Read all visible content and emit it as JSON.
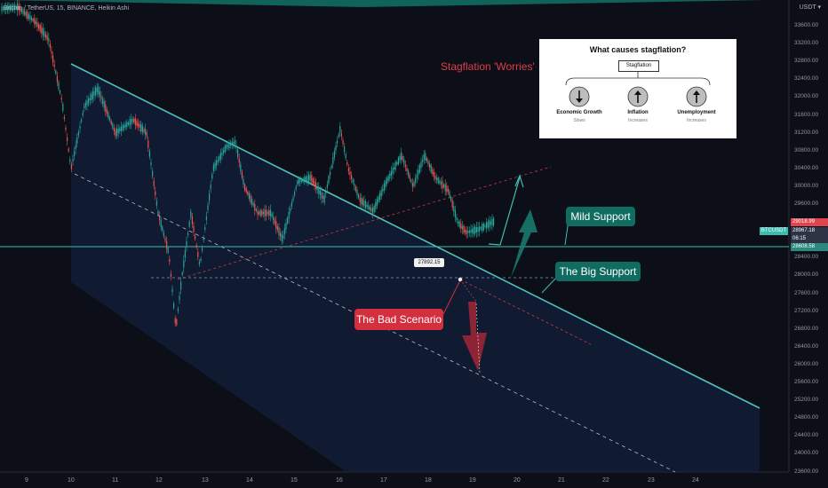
{
  "header": {
    "symbol_line": "Bitcoin / TetherUS, 15, BINANCE, Heikin Ashi",
    "currency": "USDT"
  },
  "annotations": {
    "title": "Stagflation 'Worries'",
    "mild_support": "Mild Support",
    "big_support": "The Big Support",
    "bad_scenario": "The Bad Scenario",
    "price_marker": "27892.15"
  },
  "inset": {
    "title": "What causes stagflation?",
    "root": "Stagflation",
    "items": [
      {
        "label": "Economic Growth",
        "sub": "Slows",
        "arrow": "down"
      },
      {
        "label": "Inflation",
        "sub": "Increases",
        "arrow": "up"
      },
      {
        "label": "Unemployment",
        "sub": "Increases",
        "arrow": "up"
      }
    ]
  },
  "price_axis": {
    "ticks": [
      "33600.00",
      "33200.00",
      "32800.00",
      "32400.00",
      "32000.00",
      "31600.00",
      "31200.00",
      "30800.00",
      "30400.00",
      "30000.00",
      "29600.00",
      "29200.00",
      "28800.00",
      "28400.00",
      "28000.00",
      "27600.00",
      "27200.00",
      "26800.00",
      "26400.00",
      "26000.00",
      "25600.00",
      "25200.00",
      "24800.00",
      "24400.00",
      "24000.00",
      "23600.00"
    ],
    "tag_high": "29018.99",
    "tag_symbol": "BTCUSDT",
    "tag_last": "28967.18",
    "tag_countdown": "06:15",
    "tag_low": "28608.58"
  },
  "time_axis": {
    "ticks": [
      "9",
      "10",
      "11",
      "12",
      "13",
      "14",
      "15",
      "16",
      "17",
      "18",
      "19",
      "20",
      "21",
      "22",
      "23",
      "24"
    ]
  },
  "colors": {
    "up": "#26a69a",
    "down": "#ef5350",
    "channel_line": "#4fc3b8",
    "support_box": "#106b61",
    "bad_box": "#d32f3f",
    "title_red": "#e03c48"
  }
}
